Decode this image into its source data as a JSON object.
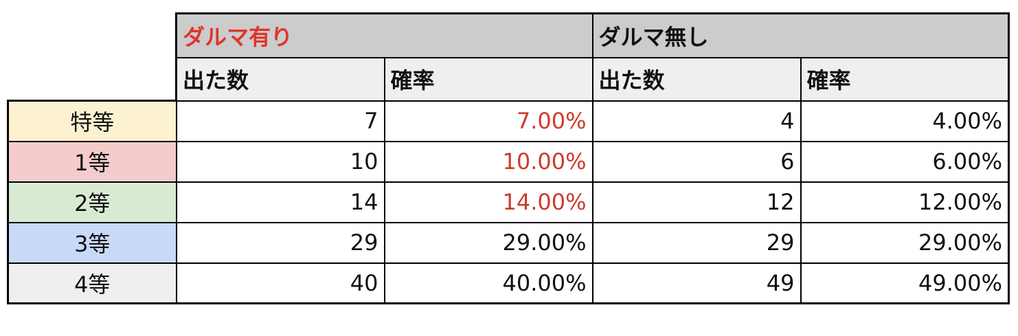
{
  "header": {
    "group1": "ダルマ有り",
    "group2": "ダルマ無し",
    "count_label": "出た数",
    "rate_label": "確率"
  },
  "colors": {
    "title_red": "#e0352b",
    "rate_red": "#cc3b2c",
    "header_bg": "#cccccc",
    "subheader_bg": "#efefef"
  },
  "rows": [
    {
      "label": "特等",
      "bg": "#fdf2d0",
      "with_count": "7",
      "with_rate": "7.00%",
      "without_count": "4",
      "without_rate": "4.00%",
      "highlight": true
    },
    {
      "label": "1等",
      "bg": "#f4cccc",
      "with_count": "10",
      "with_rate": "10.00%",
      "without_count": "6",
      "without_rate": "6.00%",
      "highlight": true
    },
    {
      "label": "2等",
      "bg": "#d9ead3",
      "with_count": "14",
      "with_rate": "14.00%",
      "without_count": "12",
      "without_rate": "12.00%",
      "highlight": true
    },
    {
      "label": "3等",
      "bg": "#c9daf8",
      "with_count": "29",
      "with_rate": "29.00%",
      "without_count": "29",
      "without_rate": "29.00%",
      "highlight": false
    },
    {
      "label": "4等",
      "bg": "#efefef",
      "with_count": "40",
      "with_rate": "40.00%",
      "without_count": "49",
      "without_rate": "49.00%",
      "highlight": false
    }
  ]
}
